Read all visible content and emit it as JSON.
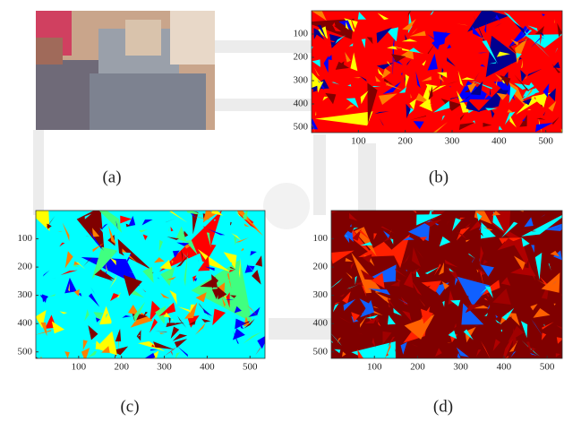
{
  "panels": [
    {
      "label": "(a)"
    },
    {
      "label": "(b)",
      "xlim": [
        0,
        535
      ],
      "ylim": [
        0,
        523
      ],
      "xticks": [
        100,
        200,
        300,
        400,
        500
      ],
      "yticks": [
        100,
        200,
        300,
        400,
        500
      ]
    },
    {
      "label": "(c)",
      "xlim": [
        0,
        535
      ],
      "ylim": [
        0,
        523
      ],
      "xticks": [
        100,
        200,
        300,
        400,
        500
      ],
      "yticks": [
        100,
        200,
        300,
        400,
        500
      ]
    },
    {
      "label": "(d)",
      "xlim": [
        0,
        535
      ],
      "ylim": [
        0,
        523
      ],
      "xticks": [
        100,
        200,
        300,
        400,
        500
      ],
      "yticks": [
        100,
        200,
        300,
        400,
        500
      ]
    }
  ]
}
